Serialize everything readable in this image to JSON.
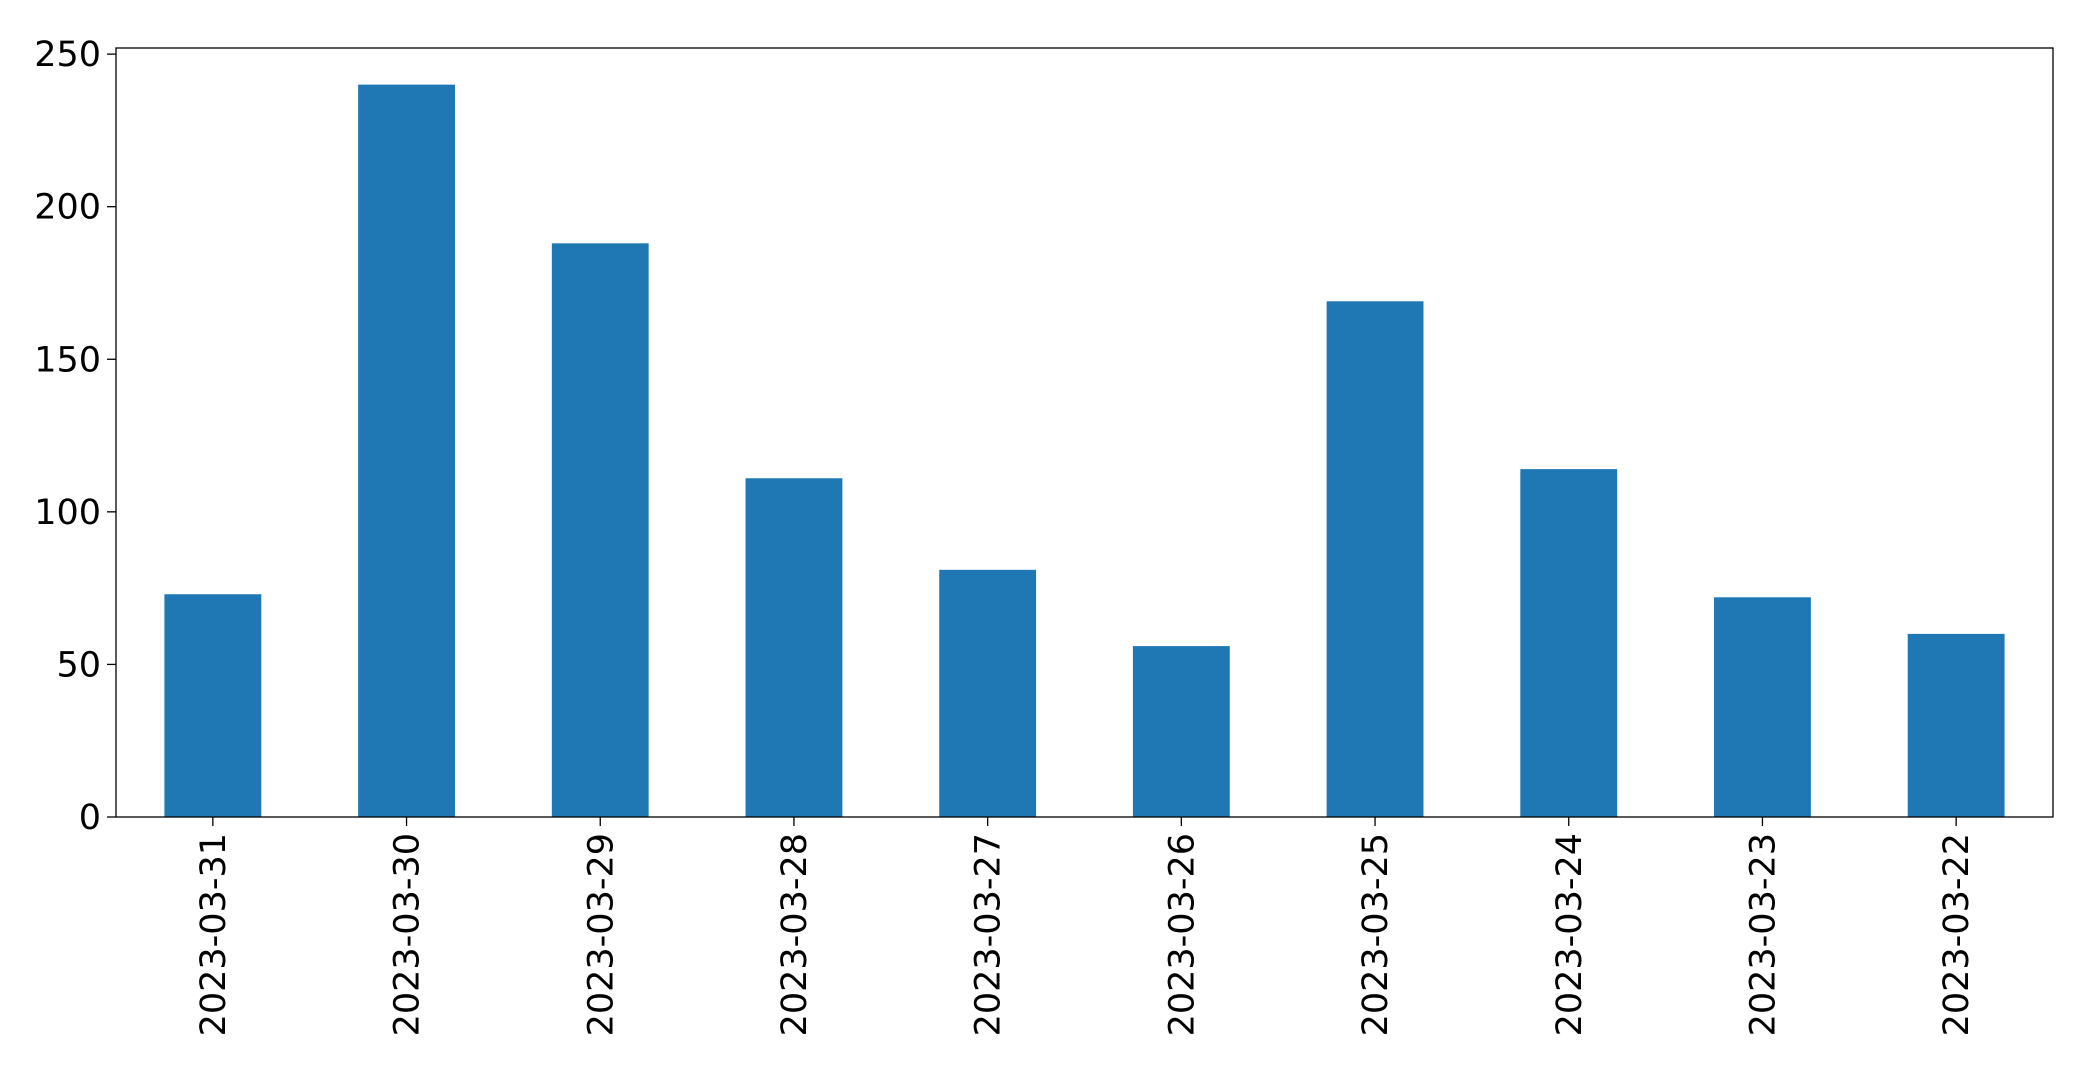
{
  "chart_data": {
    "type": "bar",
    "categories": [
      "2023-03-31",
      "2023-03-30",
      "2023-03-29",
      "2023-03-28",
      "2023-03-27",
      "2023-03-26",
      "2023-03-25",
      "2023-03-24",
      "2023-03-23",
      "2023-03-22"
    ],
    "values": [
      73,
      240,
      188,
      111,
      81,
      56,
      169,
      114,
      72,
      60
    ],
    "color": "#1f77b4",
    "ylim": [
      0,
      252
    ],
    "yticks": [
      0,
      50,
      100,
      150,
      200,
      250
    ],
    "grid": false
  }
}
